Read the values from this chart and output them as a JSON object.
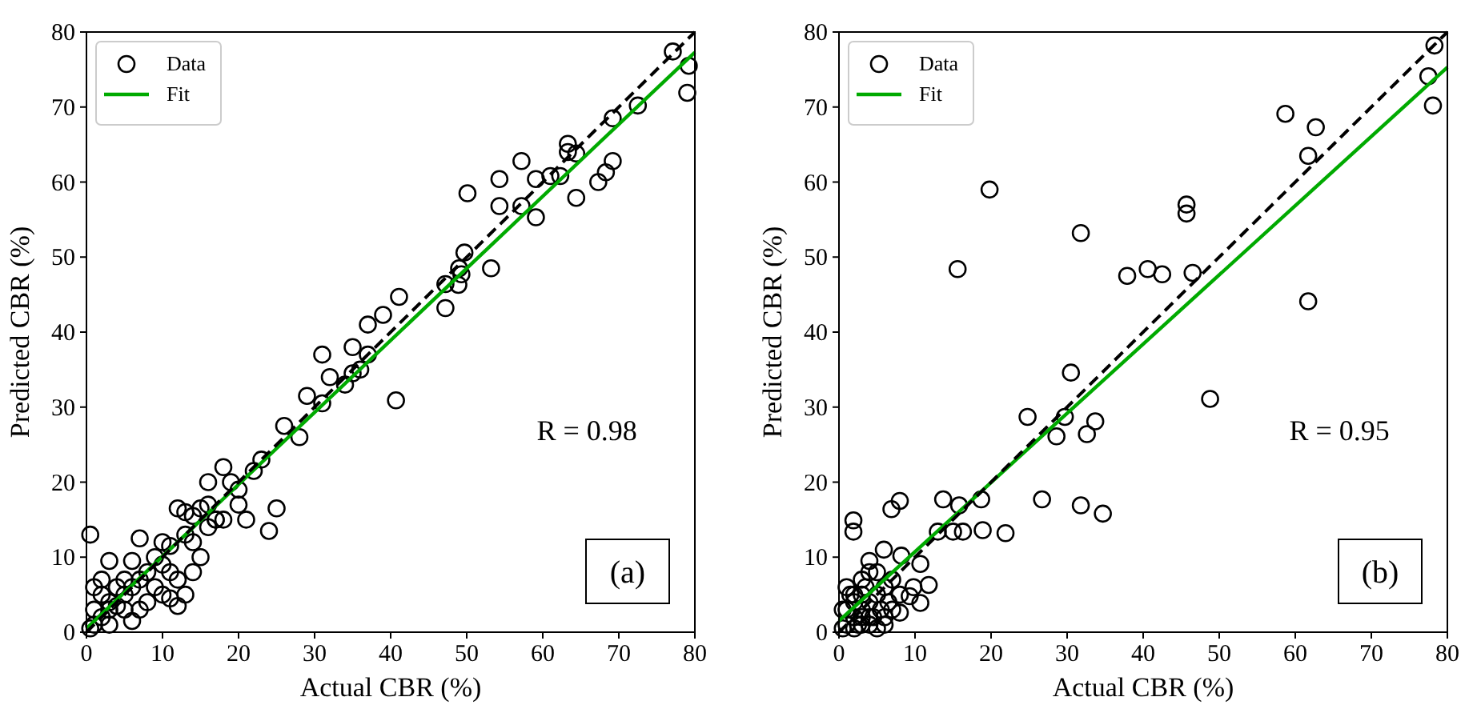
{
  "chart_data": [
    {
      "type": "scatter",
      "xlabel": "Actual CBR (%)",
      "ylabel": "Predicted CBR (%)",
      "xlim": [
        0,
        80
      ],
      "ylim": [
        0,
        80
      ],
      "xticks": [
        0,
        10,
        20,
        30,
        40,
        50,
        60,
        70,
        80
      ],
      "yticks": [
        0,
        10,
        20,
        30,
        40,
        50,
        60,
        70,
        80
      ],
      "legend": "top left",
      "annotations": [
        "R = 0.98",
        "(a)"
      ],
      "series": [
        {
          "name": "Data",
          "marker": "circle",
          "color": "#000000",
          "x": [
            77.1,
            79.2,
            79,
            72.5,
            69.2,
            69.2,
            68.3,
            67.3,
            63.3,
            63.3,
            64.4,
            64.4,
            62.3,
            61,
            59.1,
            59.1,
            57.2,
            54.3,
            54.3,
            57.2,
            53.2,
            50.1,
            49.7,
            49,
            49.3,
            48.9,
            47.2,
            47.2,
            41.1,
            39,
            40.7,
            37,
            37,
            36,
            35,
            35,
            34,
            32,
            31,
            31,
            29,
            28,
            26,
            25,
            24,
            23,
            22,
            21,
            20,
            19,
            18,
            17,
            16,
            16,
            15,
            14,
            13,
            12,
            11,
            10,
            12,
            13,
            11,
            9,
            8,
            7,
            6,
            5,
            4,
            3,
            2,
            1,
            0.5,
            3,
            5,
            7,
            10,
            12,
            14,
            10,
            2,
            1,
            0.5,
            3,
            6,
            4,
            8,
            9,
            15,
            16,
            17,
            6,
            20,
            13,
            18,
            14,
            11,
            5,
            2,
            1,
            3,
            7
          ],
          "values": [
            77.4,
            75.5,
            71.9,
            70.2,
            68.5,
            62.8,
            61.3,
            60,
            65.1,
            64,
            63.8,
            57.9,
            60.8,
            60.8,
            60.4,
            55.3,
            62.8,
            60.4,
            56.8,
            56.8,
            48.5,
            58.5,
            50.6,
            48.5,
            47.7,
            46.3,
            46.4,
            43.2,
            44.7,
            42.3,
            30.9,
            41,
            37,
            35,
            34.5,
            38,
            33,
            34,
            37,
            30.5,
            31.5,
            26,
            27.5,
            16.5,
            13.5,
            23,
            21.5,
            15,
            19,
            20,
            22,
            15,
            17,
            20,
            16.5,
            15.5,
            16,
            16.5,
            11.5,
            12,
            7,
            5,
            8,
            10,
            8,
            7,
            6,
            5,
            3.5,
            3,
            2,
            1,
            13,
            9.5,
            7,
            12.5,
            5,
            3.5,
            8,
            9,
            5,
            3,
            0.5,
            1,
            1.5,
            6,
            4,
            6,
            10,
            14,
            15,
            9.5,
            17,
            13,
            15,
            12,
            4.5,
            3,
            7,
            6,
            4,
            3
          ]
        },
        {
          "name": "Fit",
          "type": "line",
          "color": "#00aa00",
          "line_style": "solid",
          "x": [
            0,
            80
          ],
          "values": [
            0.5,
            77.3
          ]
        },
        {
          "type": "line",
          "color": "#000000",
          "line_style": "dashed",
          "x": [
            0,
            80
          ],
          "values": [
            0,
            80
          ]
        }
      ]
    },
    {
      "type": "scatter",
      "xlabel": "Actual CBR (%)",
      "ylabel": "Predicted CBR (%)",
      "xlim": [
        0,
        80
      ],
      "ylim": [
        0,
        80
      ],
      "xticks": [
        0,
        10,
        20,
        30,
        40,
        50,
        60,
        70,
        80
      ],
      "yticks": [
        0,
        10,
        20,
        30,
        40,
        50,
        60,
        70,
        80
      ],
      "legend": "top left",
      "annotations": [
        "R = 0.95",
        "(b)"
      ],
      "series": [
        {
          "name": "Data",
          "marker": "circle",
          "color": "#000000",
          "x": [
            15.6,
            19.8,
            31.8,
            37.9,
            40.6,
            42.5,
            45.7,
            45.7,
            46.5,
            61.7,
            58.7,
            62.7,
            61.7,
            77.5,
            78.1,
            78.3,
            30.5,
            48.8,
            24.8,
            29.7,
            28.6,
            32.6,
            33.7,
            26.7,
            31.8,
            34.7,
            13.7,
            15.8,
            18.7,
            18.9,
            21.9,
            13,
            15,
            16.3,
            6.9,
            8,
            1.9,
            1.9,
            8.2,
            10.7,
            5.9,
            4,
            11.8,
            10.7,
            8,
            9.8,
            9.3,
            1,
            2,
            3,
            4,
            5,
            6,
            7,
            0.5,
            1.5,
            2.5,
            3.5,
            4.5,
            5.5,
            6.5,
            1,
            2,
            3,
            4,
            5,
            2,
            3,
            4,
            6,
            7,
            8,
            0.5,
            1,
            2,
            3,
            5,
            6,
            4,
            3
          ],
          "values": [
            48.4,
            59,
            53.2,
            47.5,
            48.4,
            47.7,
            57,
            55.8,
            47.9,
            44.1,
            69.1,
            67.3,
            63.5,
            74.1,
            70.2,
            78.2,
            34.6,
            31.1,
            28.7,
            28.7,
            26.1,
            26.4,
            28.1,
            17.7,
            16.9,
            15.8,
            17.7,
            16.9,
            17.7,
            13.6,
            13.2,
            13.4,
            13.4,
            13.4,
            16.4,
            17.5,
            14.9,
            13.4,
            10.2,
            9.1,
            11,
            9.5,
            6.3,
            3.9,
            2.6,
            6,
            4.8,
            1,
            2,
            3,
            4,
            5,
            6,
            7,
            3,
            5,
            1,
            6,
            2,
            3,
            4,
            6,
            5,
            7,
            1,
            8,
            4,
            2,
            8,
            1,
            3,
            5,
            0.5,
            3,
            0.5,
            5,
            0.5,
            2,
            2,
            1
          ]
        },
        {
          "name": "Fit",
          "type": "line",
          "color": "#00aa00",
          "line_style": "solid",
          "x": [
            0,
            80
          ],
          "values": [
            1.5,
            75.3
          ]
        },
        {
          "type": "line",
          "color": "#000000",
          "line_style": "dashed",
          "x": [
            0,
            80
          ],
          "values": [
            0,
            80
          ]
        }
      ]
    }
  ]
}
